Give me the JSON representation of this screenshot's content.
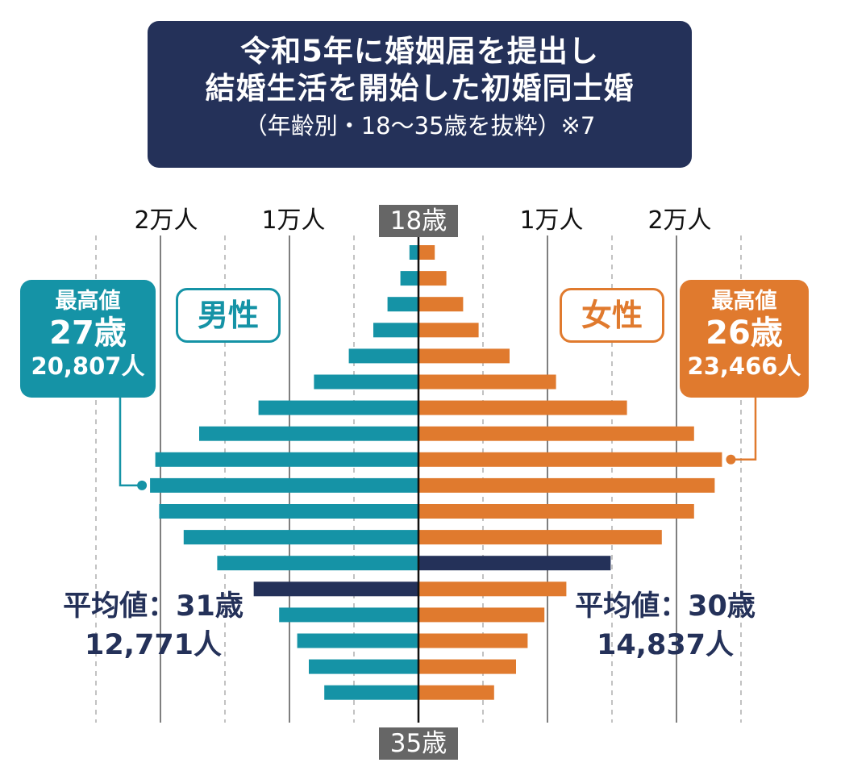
{
  "title": {
    "line1": "令和5年に婚姻届を提出し",
    "line2": "結婚生活を開始した初婚同士婚",
    "line3": "（年齢別・18〜35歳を抜粋）※7"
  },
  "labels": {
    "male": "男性",
    "female": "女性",
    "age_top": "18歳",
    "age_bottom": "35歳"
  },
  "axis_ticks": {
    "left": [
      "2万人",
      "1万人"
    ],
    "right": [
      "1万人",
      "2万人"
    ]
  },
  "male_peak": {
    "label": "最高値",
    "age": "27歳",
    "value": "20,807人"
  },
  "female_peak": {
    "label": "最高値",
    "age": "26歳",
    "value": "23,466人"
  },
  "male_avg": {
    "line1": "平均値：31歳",
    "line2": "12,771人"
  },
  "female_avg": {
    "line1": "平均値：30歳",
    "line2": "14,837人"
  },
  "colors": {
    "male": "#1593a6",
    "female": "#e07a2e",
    "highlight": "#243159",
    "title_bg": "#243159"
  },
  "chart_data": {
    "type": "bar",
    "orientation": "horizontal-population-pyramid",
    "categories": [
      18,
      19,
      20,
      21,
      22,
      23,
      24,
      25,
      26,
      27,
      28,
      29,
      30,
      31,
      32,
      33,
      34,
      35
    ],
    "units": "人",
    "xlim": [
      0,
      25000
    ],
    "series": [
      {
        "name": "男性",
        "values": [
          700,
          1400,
          2400,
          3500,
          5400,
          8100,
          12400,
          17000,
          20400,
          20807,
          20100,
          18200,
          15600,
          12771,
          10800,
          9400,
          8500,
          7300
        ],
        "highlight_index": 13
      },
      {
        "name": "女性",
        "values": [
          1200,
          2100,
          3400,
          4600,
          7000,
          10600,
          16100,
          21300,
          23466,
          22900,
          21300,
          18800,
          14837,
          11400,
          9700,
          8400,
          7500,
          5800
        ],
        "highlight_index": 12
      }
    ]
  }
}
